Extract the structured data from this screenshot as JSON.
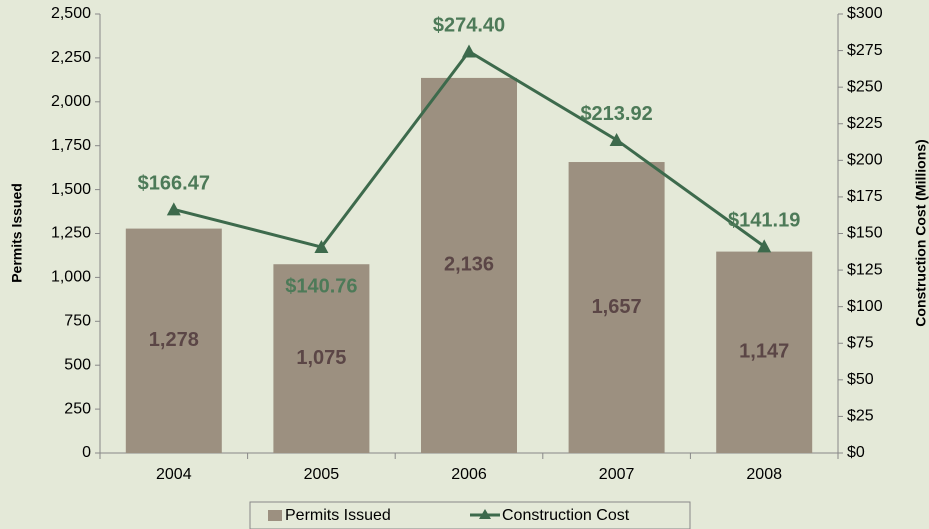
{
  "chart_data": {
    "type": "bar_line",
    "categories": [
      "2004",
      "2005",
      "2006",
      "2007",
      "2008"
    ],
    "series": [
      {
        "name": "Permits Issued",
        "type": "bar",
        "color": "#9c9080",
        "values": [
          1278,
          1075,
          2136,
          1657,
          1147
        ],
        "value_labels": [
          "1,278",
          "1,075",
          "2,136",
          "1,657",
          "1,147"
        ]
      },
      {
        "name": "Construction Cost",
        "type": "line",
        "axis": "y2",
        "color": "#3d6a4c",
        "values": [
          166.47,
          140.76,
          274.4,
          213.92,
          141.19
        ],
        "value_labels": [
          "$166.47",
          "$140.76",
          "$274.40",
          "$213.92",
          "$141.19"
        ]
      }
    ],
    "y_label": "Permits Issued",
    "y2_label": "Construction Cost (Millions)",
    "ylim": [
      0,
      2500
    ],
    "yticks": [
      0,
      250,
      500,
      750,
      1000,
      1250,
      1500,
      1750,
      2000,
      2250,
      2500
    ],
    "y2lim": [
      0,
      300
    ],
    "y2ticks": [
      {
        "value": 0,
        "label": "$0"
      },
      {
        "value": 25,
        "label": "$25"
      },
      {
        "value": 50,
        "label": "$50"
      },
      {
        "value": 75,
        "label": "$75"
      },
      {
        "value": 100,
        "label": "$100"
      },
      {
        "value": 125,
        "label": "$125"
      },
      {
        "value": 150,
        "label": "$150"
      },
      {
        "value": 175,
        "label": "$175"
      },
      {
        "value": 200,
        "label": "$200"
      },
      {
        "value": 225,
        "label": "$225"
      },
      {
        "value": 250,
        "label": "$250"
      },
      {
        "value": 275,
        "label": "$275"
      },
      {
        "value": 300,
        "label": "$300"
      }
    ],
    "legend": "bottom"
  }
}
